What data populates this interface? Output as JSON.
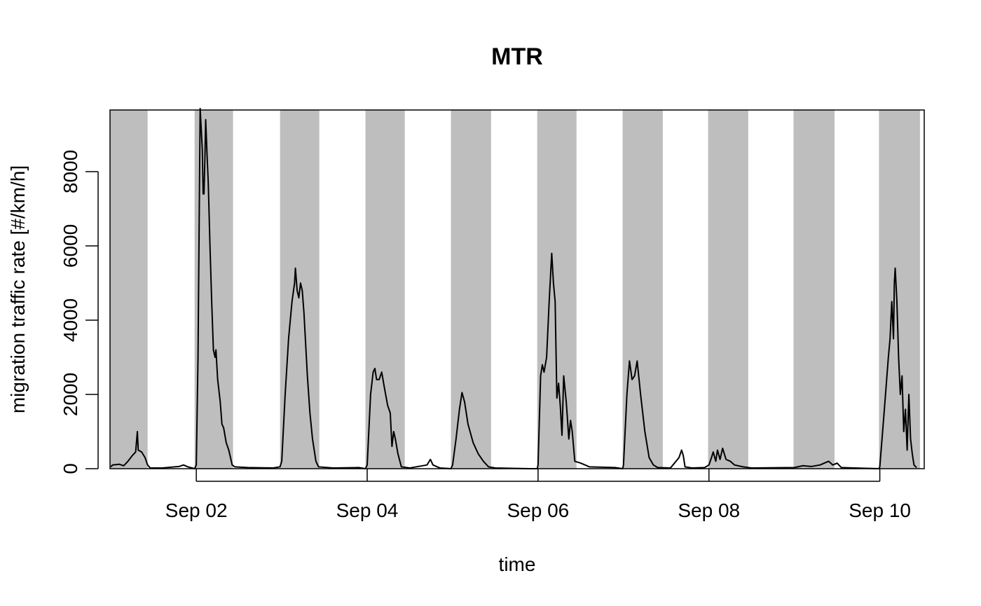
{
  "chart_data": {
    "type": "line",
    "title": "MTR",
    "xlabel": "time",
    "ylabel": "migration traffic rate [#/km/h]",
    "xlim": [
      0.99,
      10.52
    ],
    "ylim": [
      0,
      9660
    ],
    "xticks": [
      {
        "value": 2,
        "label": "Sep 02"
      },
      {
        "value": 4,
        "label": "Sep 04"
      },
      {
        "value": 6,
        "label": "Sep 06"
      },
      {
        "value": 8,
        "label": "Sep 08"
      },
      {
        "value": 10,
        "label": "Sep 10"
      }
    ],
    "yticks": [
      0,
      2000,
      4000,
      6000,
      8000
    ],
    "shading": [
      [
        0.99,
        1.43
      ],
      [
        1.98,
        2.43
      ],
      [
        2.98,
        3.44
      ],
      [
        3.98,
        4.44
      ],
      [
        4.98,
        5.45
      ],
      [
        5.99,
        6.45
      ],
      [
        6.99,
        7.46
      ],
      [
        7.99,
        8.46
      ],
      [
        8.99,
        9.47
      ],
      [
        9.99,
        10.47
      ]
    ],
    "shading_color": "#bebebe",
    "series": [
      {
        "color": "#000000",
        "x": [
          1.0,
          1.02,
          1.1,
          1.15,
          1.2,
          1.25,
          1.29,
          1.31,
          1.32,
          1.36,
          1.4,
          1.43,
          1.46,
          1.6,
          1.8,
          1.85,
          1.9,
          1.95,
          1.98,
          2.0,
          2.02,
          2.035,
          2.045,
          2.07,
          2.08,
          2.09,
          2.1,
          2.11,
          2.125,
          2.14,
          2.16,
          2.18,
          2.2,
          2.22,
          2.23,
          2.25,
          2.28,
          2.3,
          2.32,
          2.35,
          2.38,
          2.42,
          2.45,
          2.6,
          2.9,
          2.98,
          3.0,
          3.04,
          3.08,
          3.12,
          3.15,
          3.16,
          3.18,
          3.2,
          3.22,
          3.24,
          3.26,
          3.3,
          3.33,
          3.36,
          3.4,
          3.43,
          3.6,
          3.9,
          3.98,
          4.0,
          4.04,
          4.07,
          4.09,
          4.11,
          4.14,
          4.17,
          4.2,
          4.24,
          4.27,
          4.29,
          4.31,
          4.33,
          4.36,
          4.4,
          4.5,
          4.7,
          4.74,
          4.77,
          4.85,
          4.98,
          5.0,
          5.04,
          5.08,
          5.11,
          5.14,
          5.18,
          5.24,
          5.3,
          5.36,
          5.42,
          5.5,
          5.9,
          5.99,
          6.0,
          6.03,
          6.05,
          6.07,
          6.1,
          6.13,
          6.16,
          6.18,
          6.2,
          6.22,
          6.24,
          6.26,
          6.28,
          6.3,
          6.33,
          6.36,
          6.38,
          6.4,
          6.43,
          6.5,
          6.6,
          6.9,
          6.99,
          7.0,
          7.04,
          7.07,
          7.1,
          7.13,
          7.16,
          7.2,
          7.25,
          7.3,
          7.35,
          7.4,
          7.55,
          7.65,
          7.68,
          7.7,
          7.72,
          7.8,
          7.95,
          8.0,
          8.03,
          8.05,
          8.08,
          8.1,
          8.13,
          8.16,
          8.2,
          8.25,
          8.3,
          8.4,
          8.5,
          9.0,
          9.1,
          9.2,
          9.3,
          9.4,
          9.45,
          9.5,
          9.55,
          9.7,
          9.99,
          10.0,
          10.05,
          10.1,
          10.12,
          10.14,
          10.16,
          10.17,
          10.18,
          10.2,
          10.22,
          10.24,
          10.26,
          10.28,
          10.3,
          10.32,
          10.34,
          10.36,
          10.38,
          10.4,
          10.43
        ],
        "values": [
          50,
          100,
          120,
          80,
          200,
          350,
          450,
          1000,
          500,
          450,
          300,
          100,
          20,
          20,
          60,
          100,
          50,
          20,
          0,
          100,
          3000,
          7000,
          9700,
          8600,
          7400,
          7400,
          8300,
          9400,
          8500,
          7700,
          6000,
          4500,
          3200,
          3000,
          3200,
          2400,
          1800,
          1200,
          1100,
          700,
          500,
          100,
          50,
          30,
          20,
          50,
          200,
          2000,
          3500,
          4500,
          5000,
          5400,
          4800,
          4600,
          5000,
          4800,
          4200,
          2500,
          1500,
          800,
          200,
          50,
          20,
          30,
          0,
          100,
          2000,
          2600,
          2700,
          2400,
          2400,
          2600,
          2200,
          1700,
          1500,
          600,
          1000,
          800,
          400,
          50,
          20,
          100,
          250,
          100,
          20,
          0,
          100,
          800,
          1600,
          2050,
          1800,
          1200,
          700,
          400,
          200,
          50,
          20,
          0,
          0,
          100,
          2500,
          2800,
          2600,
          3000,
          4500,
          5800,
          5000,
          4500,
          1900,
          2300,
          1700,
          900,
          2500,
          1800,
          800,
          1300,
          1000,
          200,
          150,
          50,
          30,
          0,
          100,
          2000,
          2900,
          2400,
          2500,
          2900,
          2000,
          1000,
          300,
          100,
          30,
          20,
          300,
          500,
          350,
          50,
          20,
          30,
          100,
          300,
          450,
          200,
          500,
          250,
          550,
          250,
          200,
          100,
          50,
          20,
          30,
          80,
          60,
          100,
          200,
          100,
          150,
          30,
          20,
          0,
          50,
          1500,
          3000,
          3500,
          4500,
          3500,
          5000,
          5400,
          4500,
          3000,
          2000,
          2500,
          1000,
          1600,
          500,
          2000,
          800,
          400,
          100,
          30
        ]
      }
    ]
  }
}
